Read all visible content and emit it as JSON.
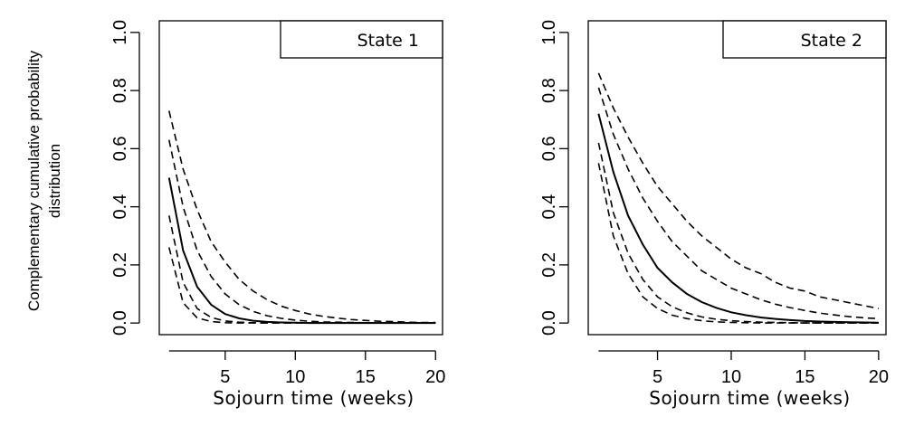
{
  "figure": {
    "ylabel_lines": [
      "Complementary cumulative probability",
      "distribution"
    ]
  },
  "chart_data": [
    {
      "type": "line",
      "title": "",
      "legend_label": "State 1",
      "legend_position": "top-right",
      "xlabel": "Sojourn time (weeks)",
      "ylabel": "Complementary cumulative probability distribution",
      "xlim": [
        0.3,
        20.5
      ],
      "ylim": [
        -0.04,
        1.04
      ],
      "xticks": [
        5,
        10,
        15,
        20
      ],
      "yticks": [
        0.0,
        0.2,
        0.4,
        0.6,
        0.8,
        1.0
      ],
      "ytick_labels": [
        "0.0",
        "0.2",
        "0.4",
        "0.6",
        "0.8",
        "1.0"
      ],
      "grid": false,
      "x": [
        1,
        2,
        3,
        4,
        5,
        6,
        7,
        8,
        9,
        10,
        11,
        12,
        13,
        14,
        15,
        16,
        17,
        18,
        19,
        20
      ],
      "series": [
        {
          "style": "solid",
          "values": [
            0.5,
            0.25,
            0.125,
            0.063,
            0.031,
            0.016,
            0.008,
            0.004,
            0.002,
            0.001,
            0.0,
            0.0,
            0.0,
            0.0,
            0.0,
            0.0,
            0.0,
            0.0,
            0.0,
            0.0
          ]
        },
        {
          "style": "dashed",
          "values": [
            0.73,
            0.53,
            0.39,
            0.28,
            0.21,
            0.15,
            0.11,
            0.08,
            0.058,
            0.043,
            0.031,
            0.023,
            0.017,
            0.012,
            0.009,
            0.006,
            0.005,
            0.003,
            0.002,
            0.002
          ]
        },
        {
          "style": "dashed",
          "values": [
            0.63,
            0.4,
            0.25,
            0.16,
            0.1,
            0.063,
            0.04,
            0.025,
            0.016,
            0.01,
            0.006,
            0.004,
            0.003,
            0.002,
            0.001,
            0.0,
            0.0,
            0.0,
            0.0,
            0.0
          ]
        },
        {
          "style": "dashed",
          "values": [
            0.37,
            0.14,
            0.05,
            0.019,
            0.007,
            0.003,
            0.001,
            0.0,
            0.0,
            0.0,
            0.0,
            0.0,
            0.0,
            0.0,
            0.0,
            0.0,
            0.0,
            0.0,
            0.0,
            0.0
          ]
        },
        {
          "style": "dashed",
          "values": [
            0.26,
            0.07,
            0.018,
            0.005,
            0.001,
            0.0,
            0.0,
            0.0,
            0.0,
            0.0,
            0.0,
            0.0,
            0.0,
            0.0,
            0.0,
            0.0,
            0.0,
            0.0,
            0.0,
            0.0
          ]
        }
      ]
    },
    {
      "type": "line",
      "title": "",
      "legend_label": "State 2",
      "legend_position": "top-right",
      "xlabel": "Sojourn time (weeks)",
      "ylabel": "",
      "xlim": [
        0.3,
        20.5
      ],
      "ylim": [
        -0.04,
        1.04
      ],
      "xticks": [
        5,
        10,
        15,
        20
      ],
      "yticks": [
        0.0,
        0.2,
        0.4,
        0.6,
        0.8,
        1.0
      ],
      "ytick_labels": [
        "0.0",
        "0.2",
        "0.4",
        "0.6",
        "0.8",
        "1.0"
      ],
      "grid": false,
      "x": [
        1,
        2,
        3,
        4,
        5,
        6,
        7,
        8,
        9,
        10,
        11,
        12,
        13,
        14,
        15,
        16,
        17,
        18,
        19,
        20
      ],
      "series": [
        {
          "style": "solid",
          "values": [
            0.72,
            0.52,
            0.37,
            0.27,
            0.19,
            0.14,
            0.1,
            0.072,
            0.052,
            0.037,
            0.027,
            0.019,
            0.014,
            0.01,
            0.007,
            0.005,
            0.004,
            0.003,
            0.002,
            0.001
          ]
        },
        {
          "style": "dashed",
          "values": [
            0.86,
            0.74,
            0.64,
            0.55,
            0.47,
            0.41,
            0.35,
            0.3,
            0.26,
            0.22,
            0.19,
            0.17,
            0.14,
            0.12,
            0.11,
            0.09,
            0.08,
            0.07,
            0.06,
            0.05
          ]
        },
        {
          "style": "dashed",
          "values": [
            0.81,
            0.65,
            0.53,
            0.43,
            0.35,
            0.28,
            0.23,
            0.18,
            0.15,
            0.12,
            0.1,
            0.08,
            0.065,
            0.053,
            0.043,
            0.034,
            0.028,
            0.022,
            0.018,
            0.015
          ]
        },
        {
          "style": "dashed",
          "values": [
            0.62,
            0.38,
            0.24,
            0.15,
            0.09,
            0.056,
            0.035,
            0.021,
            0.013,
            0.008,
            0.005,
            0.003,
            0.002,
            0.001,
            0.0,
            0.0,
            0.0,
            0.0,
            0.0,
            0.0
          ]
        },
        {
          "style": "dashed",
          "values": [
            0.55,
            0.3,
            0.17,
            0.09,
            0.05,
            0.027,
            0.015,
            0.008,
            0.004,
            0.002,
            0.001,
            0.0,
            0.0,
            0.0,
            0.0,
            0.0,
            0.0,
            0.0,
            0.0,
            0.0
          ]
        }
      ]
    }
  ]
}
